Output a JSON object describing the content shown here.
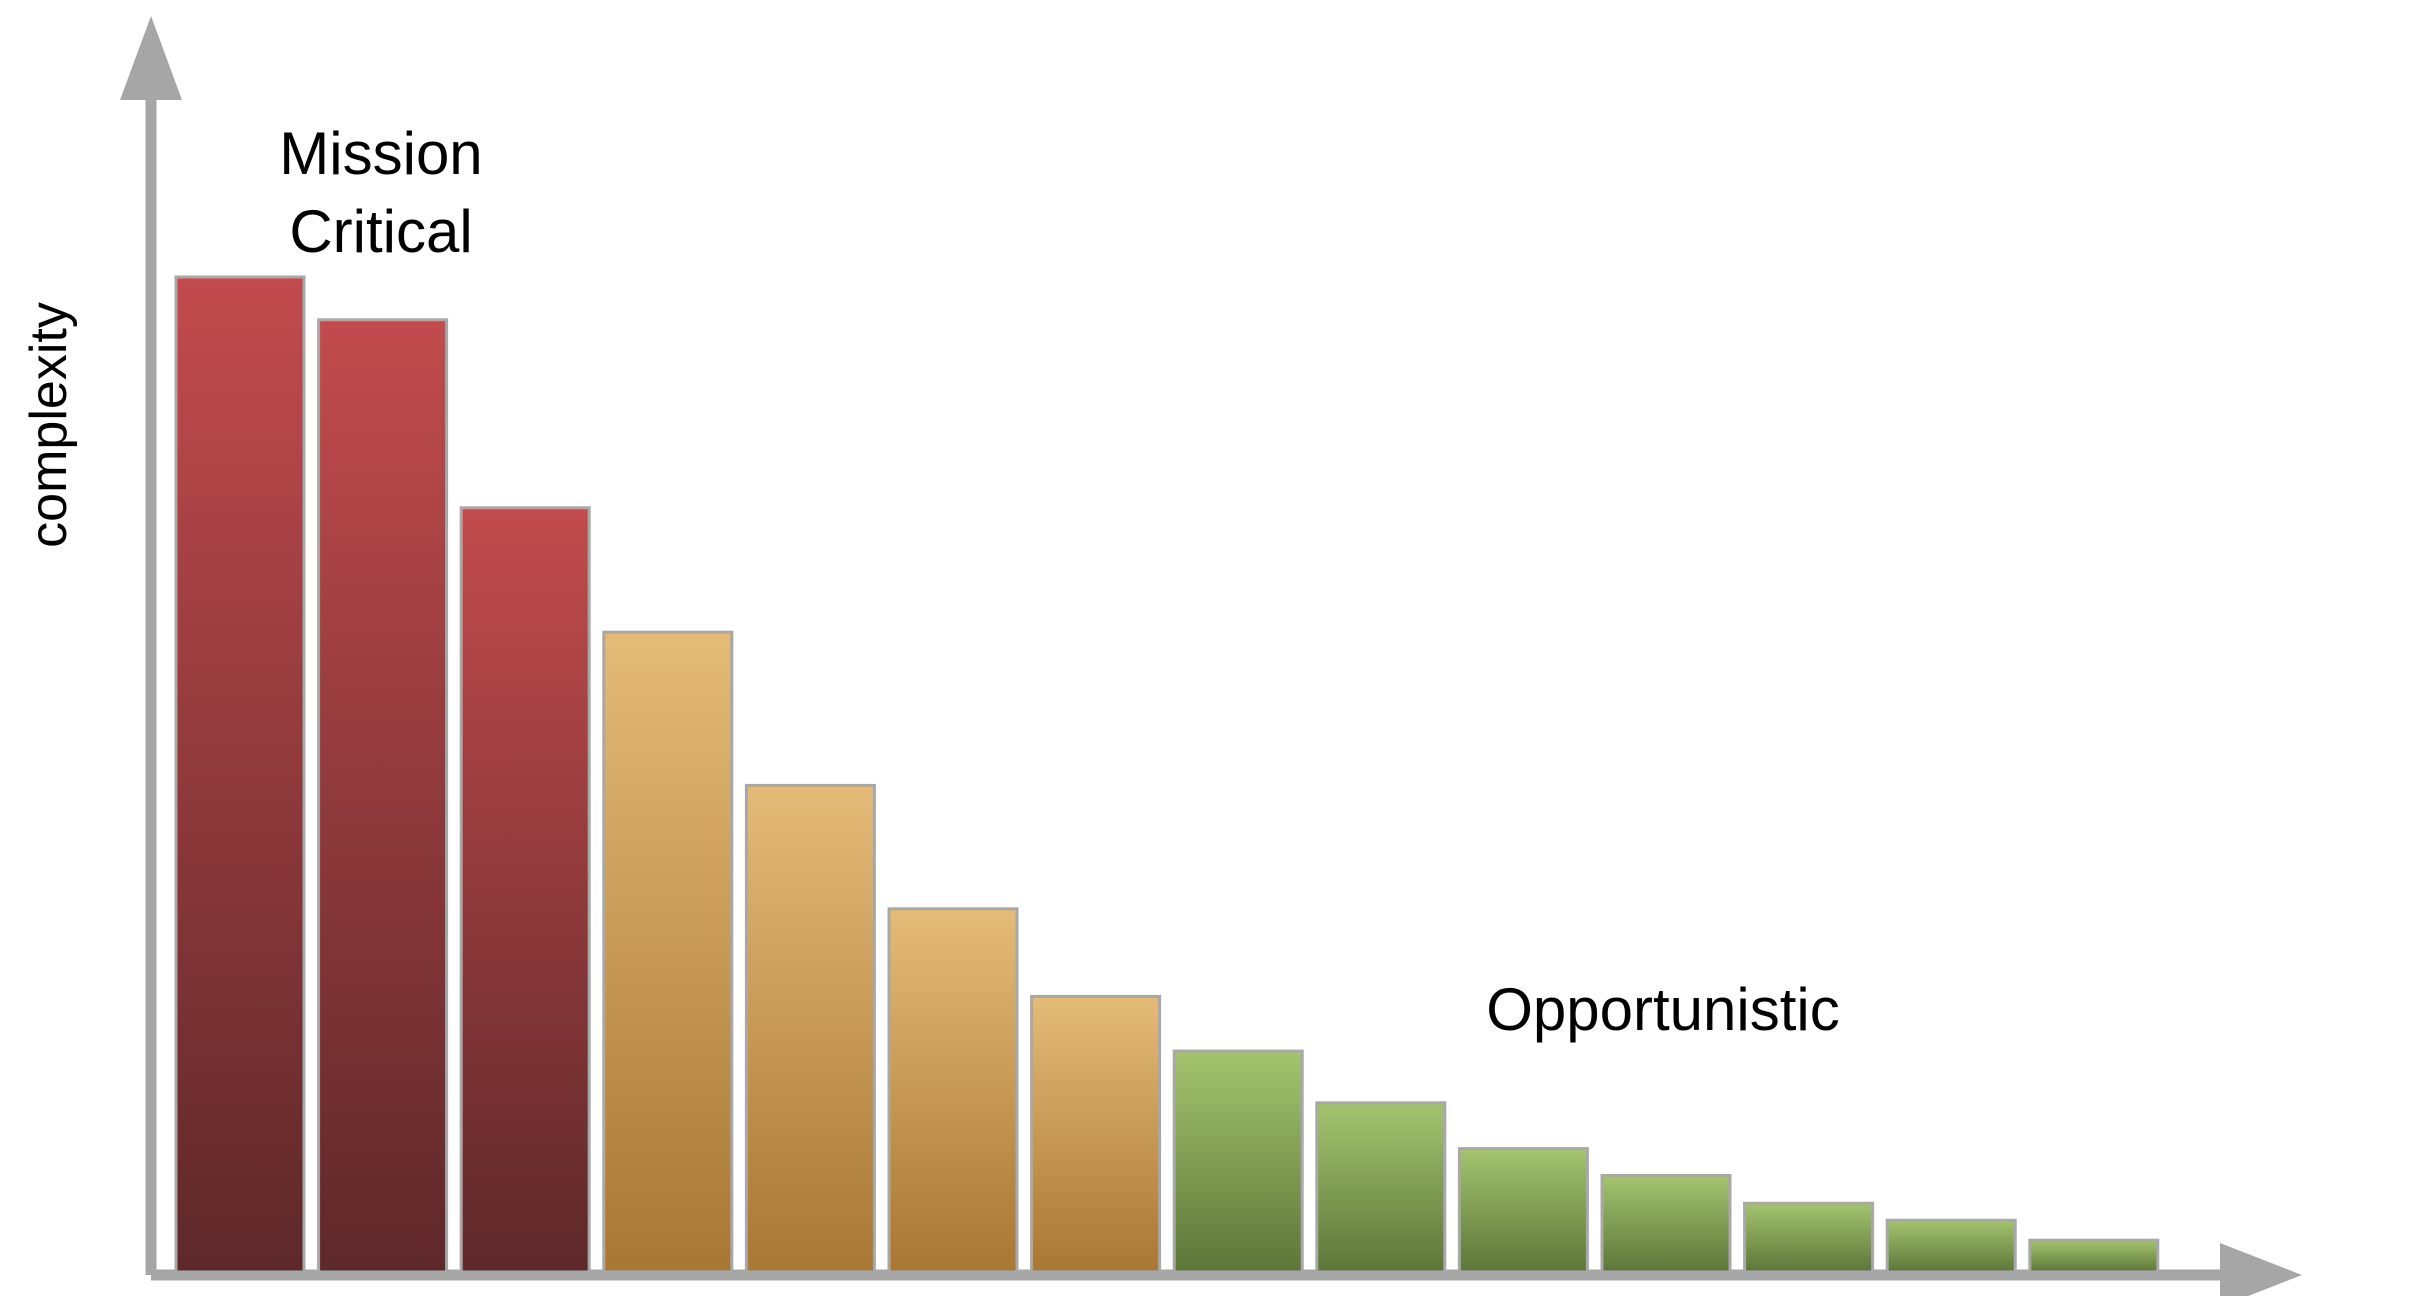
{
  "chart_data": {
    "type": "bar",
    "ylabel": "complexity",
    "xlabel": "",
    "grid": false,
    "ylim": [
      0,
      100
    ],
    "values": [
      100,
      95.7,
      76.8,
      64.3,
      48.9,
      36.5,
      27.7,
      22.2,
      17.0,
      12.4,
      9.7,
      6.9,
      5.2,
      3.2
    ],
    "groups": [
      0,
      0,
      0,
      1,
      1,
      1,
      1,
      2,
      2,
      2,
      2,
      2,
      2,
      2
    ],
    "annotations": {
      "mission_critical": [
        "Mission",
        "Critical"
      ],
      "opportunistic": "Opportunistic"
    },
    "colors": {
      "axis": "#a6a6a6",
      "bar_stroke": "#a8a8a8",
      "red_top": "#c24b4d",
      "red_bottom": "#5e282a",
      "orange_top": "#e4bb77",
      "orange_bottom": "#a87733",
      "green_top": "#a4c46f",
      "green_bottom": "#5c7638"
    }
  }
}
